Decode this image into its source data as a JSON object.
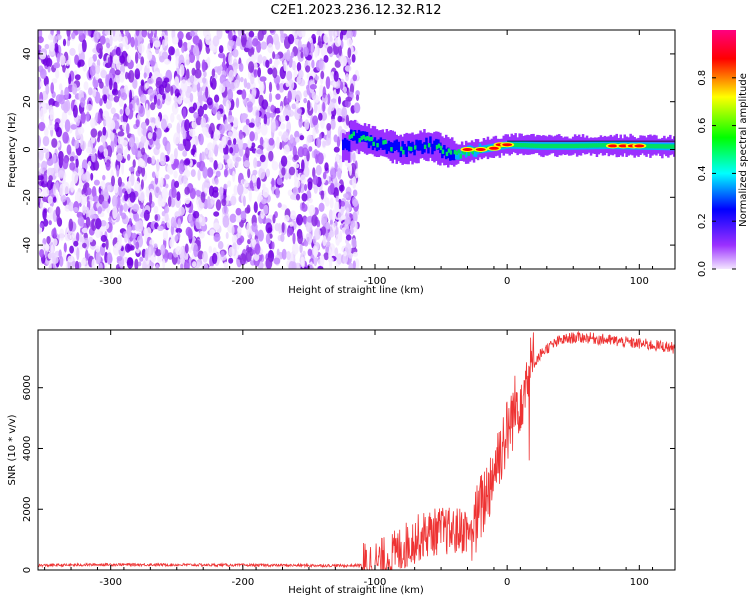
{
  "figure": {
    "title": "C2E1.2023.236.12.32.R12"
  },
  "chart_data": [
    {
      "type": "heatmap",
      "title": "C2E1.2023.236.12.32.R12",
      "xlabel": "Height of straight line (km)",
      "ylabel": "Frequency (Hz)",
      "xlim": [
        -355,
        127
      ],
      "ylim": [
        -50,
        50
      ],
      "x_ticks": [
        -300,
        -200,
        -100,
        0,
        100
      ],
      "y_ticks": [
        -40,
        -20,
        0,
        20,
        40
      ],
      "colorbar": {
        "label": "Normalized spectral amplitude",
        "range": [
          0,
          1
        ],
        "ticks": [
          0.0,
          0.2,
          0.4,
          0.6,
          0.8
        ],
        "colors": [
          "#f3e6ff",
          "#9b30ff",
          "#0000ff",
          "#00ffff",
          "#00ff00",
          "#ffff00",
          "#ff0000",
          "#ff0080"
        ]
      },
      "regions": {
        "noise": {
          "x_range": [
            -355,
            -113
          ],
          "y_range": [
            -50,
            50
          ],
          "amplitude": "low"
        },
        "signal_ridge": [
          {
            "x": -120,
            "y": 6
          },
          {
            "x": -100,
            "y": 3
          },
          {
            "x": -80,
            "y": 0
          },
          {
            "x": -60,
            "y": 2
          },
          {
            "x": -40,
            "y": -2
          },
          {
            "x": -20,
            "y": 0
          },
          {
            "x": 0,
            "y": 2
          },
          {
            "x": 25,
            "y": 1.5
          },
          {
            "x": 50,
            "y": 1.5
          },
          {
            "x": 75,
            "y": 1.8
          },
          {
            "x": 100,
            "y": 1.5
          },
          {
            "x": 127,
            "y": 1.2
          }
        ]
      }
    },
    {
      "type": "line",
      "xlabel": "Height of straight line (km)",
      "ylabel": "SNR (10 * v/v)",
      "xlim": [
        -355,
        127
      ],
      "ylim": [
        0,
        7900
      ],
      "x_ticks": [
        -300,
        -200,
        -100,
        0,
        100
      ],
      "y_ticks": [
        0,
        2000,
        4000,
        6000
      ],
      "color": "#ee3333",
      "series": [
        {
          "x": [
            -355,
            -300,
            -250,
            -200,
            -150,
            -120,
            -110,
            -100,
            -90,
            -80,
            -70,
            -60,
            -50,
            -40,
            -30,
            -25,
            -20,
            -15,
            -10,
            -5,
            0,
            5,
            10,
            15,
            20,
            25,
            30,
            40,
            50,
            60,
            70,
            80,
            90,
            100,
            110,
            120,
            127
          ],
          "values": [
            150,
            180,
            170,
            160,
            150,
            140,
            160,
            200,
            350,
            700,
            1000,
            1200,
            1300,
            1250,
            1350,
            1400,
            2000,
            2600,
            3300,
            4000,
            4500,
            5200,
            5700,
            6300,
            6800,
            7100,
            7300,
            7550,
            7650,
            7650,
            7600,
            7550,
            7500,
            7450,
            7400,
            7350,
            7300
          ]
        }
      ]
    }
  ]
}
